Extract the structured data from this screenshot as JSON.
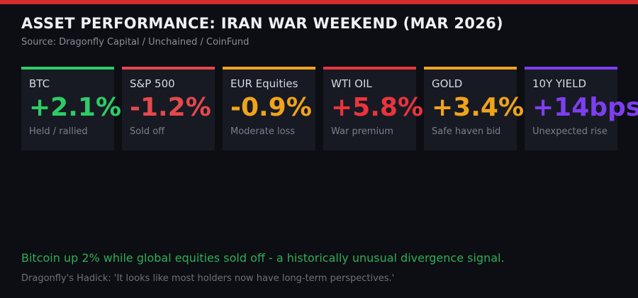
{
  "page": {
    "background": "#0c0e13",
    "accent_bar_color": "#d22c2c"
  },
  "header": {
    "title": "ASSET PERFORMANCE: IRAN WAR WEEKEND (MAR 2026)",
    "source": "Source: Dragonfly Capital / Unchained / CoinFund"
  },
  "cards": [
    {
      "label": "BTC",
      "value": "+2.1%",
      "note": "Held / rallied",
      "color": "#2ecc66"
    },
    {
      "label": "S&P 500",
      "value": "-1.2%",
      "note": "Sold off",
      "color": "#e5484d"
    },
    {
      "label": "EUR Equities",
      "value": "-0.9%",
      "note": "Moderate loss",
      "color": "#f0a31b"
    },
    {
      "label": "WTI OIL",
      "value": "+5.8%",
      "note": "War premium",
      "color": "#ea343c"
    },
    {
      "label": "GOLD",
      "value": "+3.4%",
      "note": "Safe haven bid",
      "color": "#f0a31b"
    },
    {
      "label": "10Y YIELD",
      "value": "+14bps",
      "note": "Unexpected rise",
      "color": "#7d3ef0"
    }
  ],
  "footer": {
    "takeaway": "Bitcoin up 2% while global equities sold off - a historically unusual divergence signal.",
    "takeaway_color": "#2fae55",
    "quote": "Dragonfly's Hadick: 'It looks like most holders now have long-term perspectives.'"
  },
  "chart_data": {
    "type": "table",
    "title": "ASSET PERFORMANCE: IRAN WAR WEEKEND (MAR 2026)",
    "source": "Dragonfly Capital / Unchained / CoinFund",
    "categories": [
      "BTC",
      "S&P 500",
      "EUR Equities",
      "WTI OIL",
      "GOLD",
      "10Y YIELD"
    ],
    "values": [
      2.1,
      -1.2,
      -0.9,
      5.8,
      3.4,
      14
    ],
    "units": [
      "%",
      "%",
      "%",
      "%",
      "%",
      "bps"
    ],
    "value_labels": [
      "+2.1%",
      "-1.2%",
      "-0.9%",
      "+5.8%",
      "+3.4%",
      "+14bps"
    ],
    "notes": [
      "Held / rallied",
      "Sold off",
      "Moderate loss",
      "War premium",
      "Safe haven bid",
      "Unexpected rise"
    ],
    "value_colors": [
      "#2ecc66",
      "#e5484d",
      "#f0a31b",
      "#ea343c",
      "#f0a31b",
      "#7d3ef0"
    ],
    "annotation": "Bitcoin up 2% while global equities sold off - a historically unusual divergence signal.",
    "quote": "Dragonfly's Hadick: 'It looks like most holders now have long-term perspectives.'"
  }
}
